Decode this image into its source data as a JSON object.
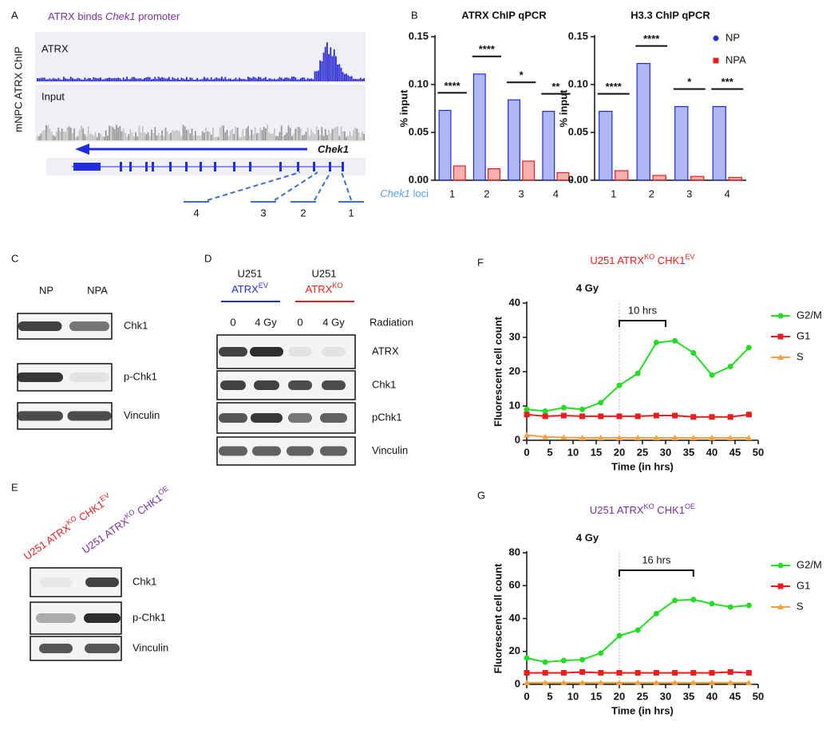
{
  "panel_labels": [
    "A",
    "B",
    "C",
    "D",
    "E",
    "F",
    "G"
  ],
  "panel_a": {
    "title": [
      "ATRX binds ",
      "Chek1",
      " promoter"
    ],
    "y_label": "mNPC ATRX ChIP",
    "tracks": [
      "ATRX",
      "Input"
    ],
    "gene": "Chek1",
    "loci": [
      "4",
      "3",
      "2",
      "1"
    ]
  },
  "panel_c": {
    "lanes": [
      "NP",
      "NPA"
    ],
    "lane_colors": [
      "#1f2fe0",
      "#ee1c1c"
    ],
    "blots": [
      "Chk1",
      "p-Chk1",
      "Vinculin"
    ]
  },
  "panel_d": {
    "groups": [
      [
        "U251",
        "ATRX",
        "EV"
      ],
      [
        "U251",
        "ATRX",
        "KO"
      ]
    ],
    "group_colors": [
      "#1f2fe0",
      "#ee1c1c"
    ],
    "lanes": [
      "0",
      "4 Gy",
      "0",
      "4 Gy"
    ],
    "condition": "Radiation",
    "blots": [
      "ATRX",
      "Chk1",
      "pChk1",
      "Vinculin"
    ]
  },
  "panel_e": {
    "lanes": [
      [
        "U251 ATRX",
        "KO",
        " CHK1",
        "EV"
      ],
      [
        "U251 ATRX",
        "KO",
        " CHK1",
        "OE"
      ]
    ],
    "lane_colors": [
      "#ee1c1c",
      "#7b2fa5"
    ],
    "blots": [
      "Chk1",
      "p-Chk1",
      "Vinculin"
    ]
  },
  "chart_data": [
    {
      "type": "bar",
      "title": "ATRX ChIP qPCR",
      "y_label": "% input",
      "x_label": [
        "Chek1",
        " loci"
      ],
      "categories": [
        "1",
        "2",
        "3",
        "4"
      ],
      "series": [
        {
          "color": "#1f2fe0",
          "values": [
            0.073,
            0.111,
            0.084,
            0.072
          ]
        },
        {
          "color": "#ee1c1c",
          "values": [
            0.015,
            0.012,
            0.02,
            0.008
          ]
        }
      ],
      "annotations": [
        "****",
        "****",
        "*",
        "**"
      ],
      "ylim": [
        0,
        0.15
      ],
      "yticks": [
        {
          "value": 0,
          "label": "0.00"
        },
        0.05,
        {
          "value": 0.1,
          "label": "0.10"
        },
        0.15
      ]
    },
    {
      "type": "bar",
      "title": "H3.3 ChIP qPCR",
      "y_label": "% input",
      "categories": [
        "1",
        "2",
        "3",
        "4"
      ],
      "series": [
        {
          "name": "NP",
          "color": "#1f2fe0",
          "values": [
            0.072,
            0.122,
            0.077,
            0.077
          ]
        },
        {
          "name": "NPA",
          "color": "#ee1c1c",
          "values": [
            0.01,
            0.005,
            0.004,
            0.003
          ]
        }
      ],
      "annotations": [
        "****",
        "****",
        "*",
        "***"
      ],
      "ylim": [
        0,
        0.15
      ],
      "yticks": [
        {
          "value": 0,
          "label": "0.00"
        },
        0.05,
        {
          "value": 0.1,
          "label": "0.10"
        },
        0.15
      ],
      "legend": "top-right"
    },
    {
      "type": "line",
      "title": [
        "U251 ATRX",
        "KO",
        " CHK1",
        "EV"
      ],
      "title_color": "#ee1c1c",
      "x_label": "Time (in hrs)",
      "y_label": "Fluorescent cell count",
      "x": [
        0,
        4,
        8,
        12,
        16,
        20,
        24,
        28,
        32,
        36,
        40,
        44,
        48
      ],
      "series": [
        {
          "name": "G2/M",
          "color": "#22dd22",
          "values": [
            9,
            8.5,
            9.5,
            9,
            11,
            16,
            19.5,
            28.5,
            29,
            25.5,
            19,
            21.5,
            27
          ]
        },
        {
          "name": "G1",
          "color": "#ee1c1c",
          "values": [
            7.5,
            7,
            7.2,
            7,
            7,
            7,
            7,
            7.2,
            7.2,
            6.8,
            6.8,
            6.8,
            7.5
          ]
        },
        {
          "name": "S",
          "color": "#f5a142",
          "values": [
            1.5,
            1,
            0.8,
            0.7,
            0.7,
            0.7,
            0.7,
            0.7,
            0.7,
            0.7,
            0.7,
            0.7,
            0.7
          ]
        }
      ],
      "xlim": [
        0,
        50
      ],
      "xticks": [
        0,
        5,
        10,
        15,
        20,
        25,
        30,
        35,
        40,
        45,
        50
      ],
      "ylim": [
        0,
        40
      ],
      "yticks": [
        0,
        10,
        20,
        30,
        40
      ],
      "legend": "right",
      "dose": {
        "label": "4 Gy",
        "x": 20
      },
      "bracket": {
        "label": "10 hrs",
        "x": [
          20,
          30
        ]
      }
    },
    {
      "type": "line",
      "title": [
        "U251 ATRX",
        "KO",
        " CHK1",
        "OE"
      ],
      "title_color": "#7b2fa5",
      "x_label": "Time (in hrs)",
      "y_label": "Fluorescent cell count",
      "x": [
        0,
        4,
        8,
        12,
        16,
        20,
        24,
        28,
        32,
        36,
        40,
        44,
        48
      ],
      "series": [
        {
          "name": "G2/M",
          "color": "#22dd22",
          "values": [
            16,
            13.5,
            14.5,
            15,
            19,
            29.5,
            33,
            43,
            51,
            51.5,
            49,
            47,
            48
          ]
        },
        {
          "name": "G1",
          "color": "#ee1c1c",
          "values": [
            7,
            7,
            7,
            7.5,
            7,
            7,
            7,
            7,
            7,
            7,
            7,
            7.5,
            7
          ]
        },
        {
          "name": "S",
          "color": "#f5a142",
          "values": [
            1,
            1,
            1,
            1,
            1,
            1,
            1,
            1,
            1,
            1,
            1,
            1,
            1
          ]
        }
      ],
      "xlim": [
        0,
        50
      ],
      "xticks": [
        0,
        5,
        10,
        15,
        20,
        25,
        30,
        35,
        40,
        45,
        50
      ],
      "ylim": [
        0,
        80
      ],
      "yticks": [
        0,
        20,
        40,
        60,
        80
      ],
      "legend": "right",
      "dose": {
        "label": "4 Gy",
        "x": 20
      },
      "bracket": {
        "label": "16 hrs",
        "x": [
          20,
          36
        ]
      }
    }
  ]
}
